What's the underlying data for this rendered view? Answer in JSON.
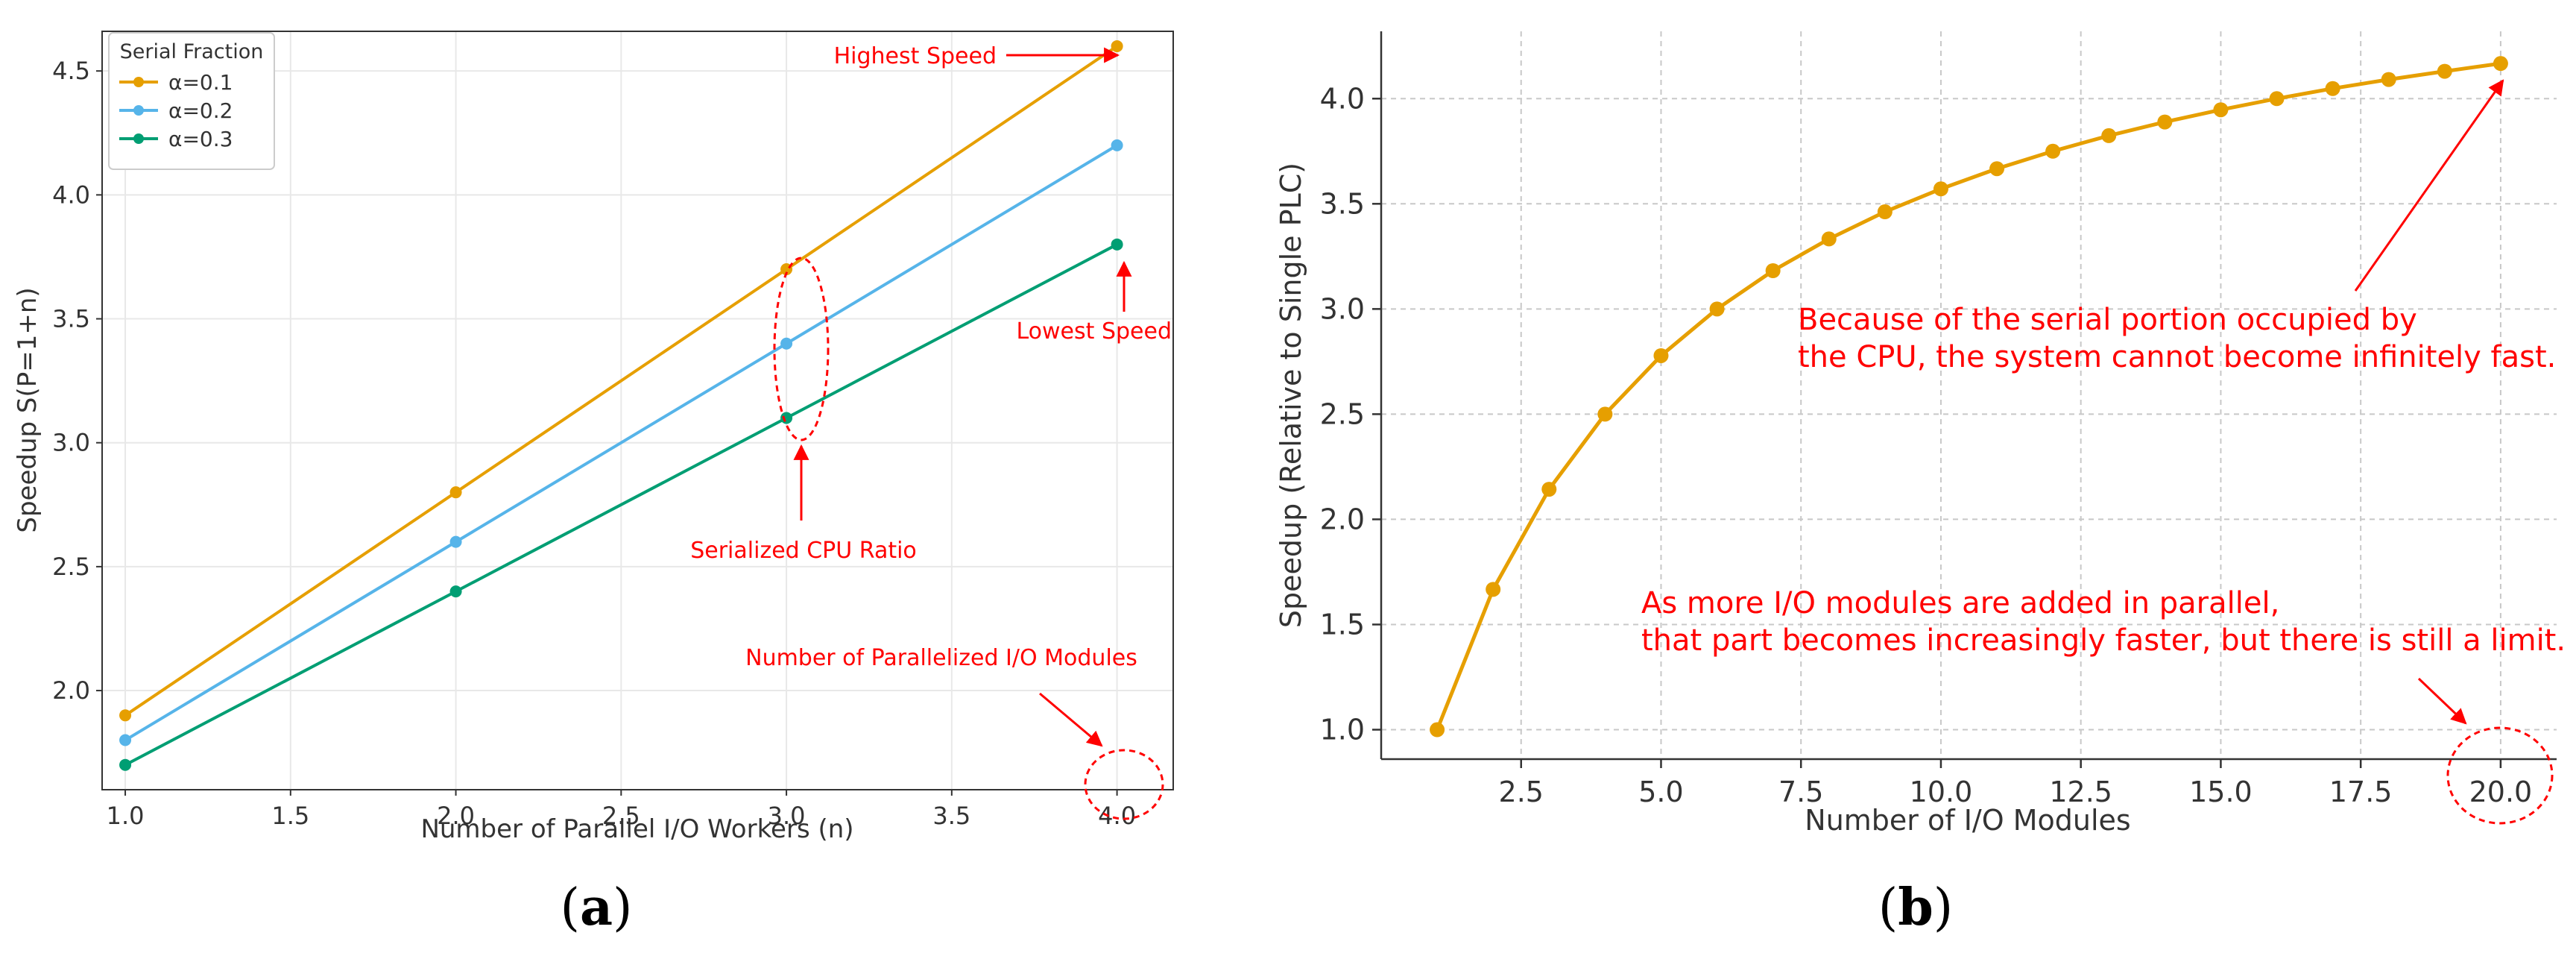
{
  "chart_data": [
    {
      "panel": "a",
      "type": "line",
      "caption_letter": "a",
      "xlabel": "Number of Parallel I/O Workers (n)",
      "ylabel": "Speedup S(P=1+n)",
      "xlim": [
        0.93,
        4.17
      ],
      "ylim": [
        1.6,
        4.66
      ],
      "xticks": [
        1.0,
        1.5,
        2.0,
        2.5,
        3.0,
        3.5,
        4.0
      ],
      "yticks": [
        2.0,
        2.5,
        3.0,
        3.5,
        4.0,
        4.5
      ],
      "x": [
        1.0,
        2.0,
        3.0,
        4.0
      ],
      "legend_title": "Serial Fraction",
      "grid": true,
      "series": [
        {
          "name": "α=0.1",
          "color": "#E69F00",
          "values": [
            1.9,
            2.8,
            3.7,
            4.6
          ]
        },
        {
          "name": "α=0.2",
          "color": "#56B4E9",
          "values": [
            1.8,
            2.6,
            3.4,
            4.2
          ]
        },
        {
          "name": "α=0.3",
          "color": "#009E73",
          "values": [
            1.7,
            2.4,
            3.1,
            3.8
          ]
        }
      ],
      "annotations": {
        "highest": "Highest Speed",
        "lowest": "Lowest Speed",
        "serialized": "Serialized CPU Ratio",
        "modules": "Number of Parallelized I/O Modules"
      }
    },
    {
      "panel": "b",
      "type": "line",
      "caption_letter": "b",
      "xlabel": "Number of I/O Modules",
      "ylabel": "Speedup (Relative to Single PLC)",
      "xlim": [
        0.0,
        21.0
      ],
      "ylim": [
        0.86,
        4.32
      ],
      "xticks": [
        2.5,
        5.0,
        7.5,
        10.0,
        12.5,
        15.0,
        17.5,
        20.0
      ],
      "yticks": [
        1.0,
        1.5,
        2.0,
        2.5,
        3.0,
        3.5,
        4.0
      ],
      "grid": true,
      "series": [
        {
          "name": "Speedup",
          "color": "#E69F00",
          "x": [
            1,
            2,
            3,
            4,
            5,
            6,
            7,
            8,
            9,
            10,
            11,
            12,
            13,
            14,
            15,
            16,
            17,
            18,
            19,
            20
          ],
          "values": [
            1.0,
            1.667,
            2.143,
            2.5,
            2.778,
            3.0,
            3.182,
            3.333,
            3.462,
            3.571,
            3.667,
            3.75,
            3.824,
            3.889,
            3.947,
            4.0,
            4.048,
            4.091,
            4.13,
            4.167
          ]
        }
      ],
      "annotations": {
        "serial_line1": "Because of the serial portion occupied by",
        "serial_line2": "the CPU, the system cannot become infinitely fast.",
        "parallel_line1": "As more I/O modules are added in parallel,",
        "parallel_line2": "that part becomes increasingly faster, but there is still a limit."
      }
    }
  ]
}
